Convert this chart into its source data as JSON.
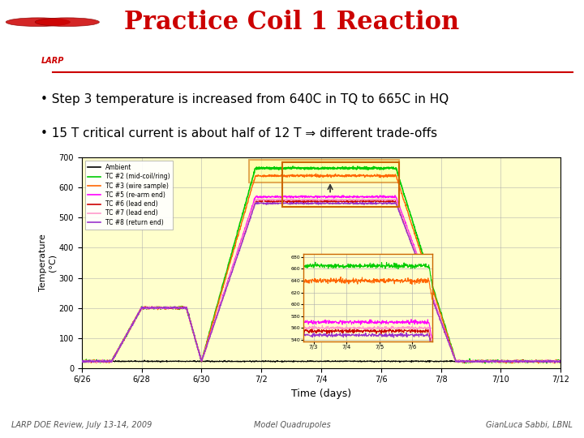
{
  "title": "Practice Coil 1 Reaction",
  "title_color": "#cc0000",
  "bullet1": "Step 3 temperature is increased from 640C in TQ to 665C in HQ",
  "bullet2": "15 T critical current is about half of 12 T ⇒ different trade-offs",
  "footer_left": "LARP DOE Review, July 13-14, 2009",
  "footer_center": "Model Quadrupoles",
  "footer_right": "GianLuca Sabbi, LBNL",
  "larp_text": "LARP",
  "bg_color": "#ffffff",
  "plot_bg": "#ffffcc",
  "xmin": 0,
  "xmax": 16,
  "ymin": 0,
  "ymax": 700,
  "xlabel": "Time (days)",
  "ylabel": "Temperature\n(°C)",
  "x_tick_labels": [
    "6/26",
    "6/28",
    "6/30",
    "7/2",
    "7/4",
    "7/6",
    "7/8",
    "7/10",
    "7/12"
  ],
  "x_tick_positions": [
    0,
    2,
    4,
    6,
    8,
    10,
    12,
    14,
    16
  ],
  "y_tick_positions": [
    0,
    100,
    200,
    300,
    400,
    500,
    600,
    700
  ],
  "grid_color": "#aaaaaa",
  "line_colors": {
    "Ambient": "#000000",
    "TC #2 (mid-coil/ring)": "#00cc00",
    "TC #3 (wire sample)": "#ff6600",
    "TC #5 (re-arm end)": "#ff00ff",
    "TC #6 (lead end)": "#cc0000",
    "TC #7 (lead end)": "#ff99cc",
    "TC #8 (return end)": "#9933cc"
  }
}
